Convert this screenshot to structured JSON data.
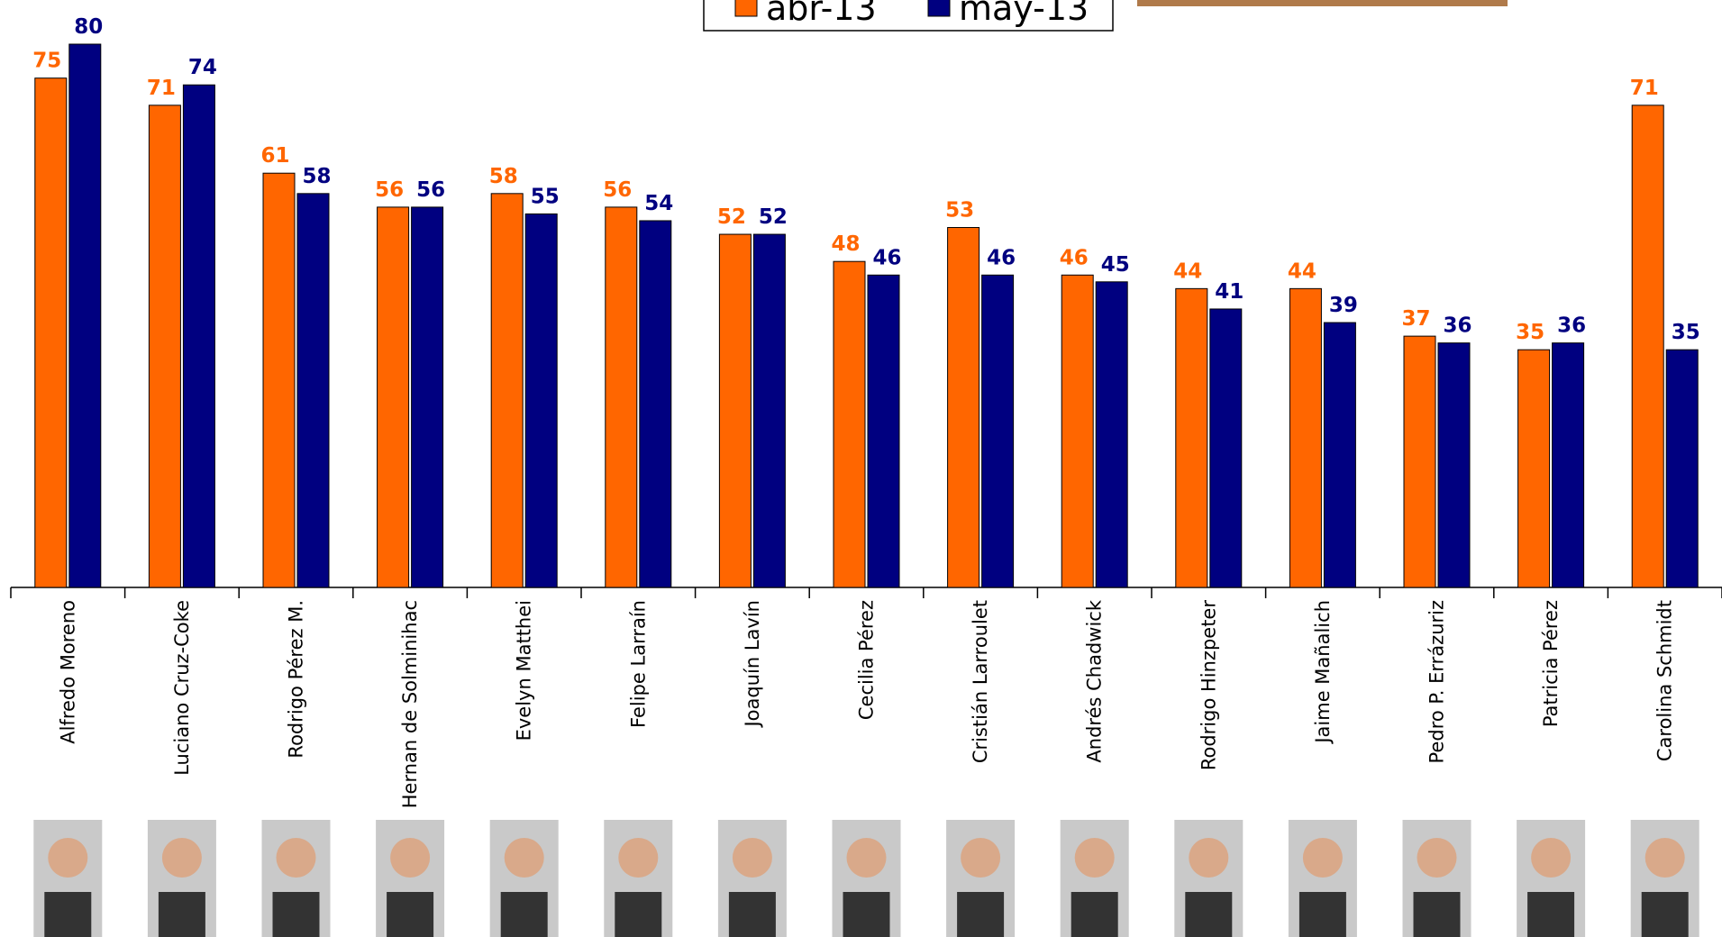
{
  "chart_data": {
    "type": "bar",
    "categories": [
      "Alfredo Moreno",
      "Luciano Cruz-Coke",
      "Rodrigo Pérez M.",
      "Hernan de Solminihac",
      "Evelyn Matthei",
      "Felipe Larraín",
      "Joaquín Lavín",
      "Cecilia Pérez",
      "Cristián Larroulet",
      "Andrés Chadwick",
      "Rodrigo Hinzpeter",
      "Jaime Mañalich",
      "Pedro P. Errázuriz",
      "Patricia Pérez",
      "Carolina Schmidt"
    ],
    "series": [
      {
        "name": "abr-13",
        "color": "#ff6600",
        "values": [
          75,
          71,
          61,
          56,
          58,
          56,
          52,
          48,
          53,
          46,
          44,
          44,
          37,
          35,
          71
        ]
      },
      {
        "name": "may-13",
        "color": "#000080",
        "values": [
          80,
          74,
          58,
          56,
          55,
          54,
          52,
          46,
          46,
          45,
          41,
          39,
          36,
          36,
          35
        ]
      }
    ]
  }
}
